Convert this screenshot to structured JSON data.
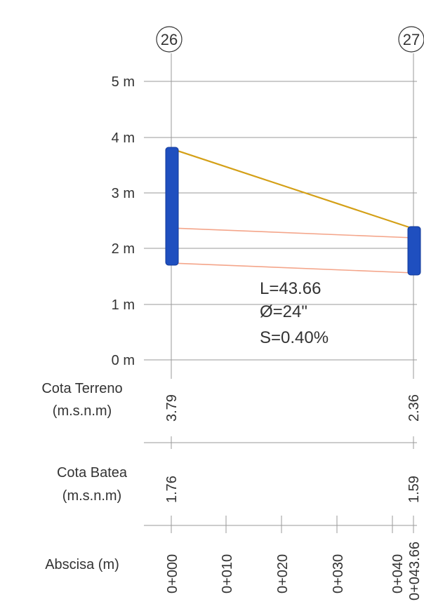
{
  "manholes": [
    {
      "id": "26",
      "terrain": "3.79",
      "invert": "1.76",
      "terrain_value": 3.79,
      "invert_value": 1.76
    },
    {
      "id": "27",
      "terrain": "2.36",
      "invert": "1.59",
      "terrain_value": 2.36,
      "invert_value": 1.59
    }
  ],
  "y_axis": {
    "ticks": [
      {
        "label": "0 m",
        "value": 0
      },
      {
        "label": "1 m",
        "value": 1
      },
      {
        "label": "2 m",
        "value": 2
      },
      {
        "label": "3 m",
        "value": 3
      },
      {
        "label": "4 m",
        "value": 4
      },
      {
        "label": "5 m",
        "value": 5
      }
    ]
  },
  "pipe": {
    "length": "L=43.66",
    "diameter": "Ø=24\"",
    "slope": "S=0.40%",
    "crown_start": 2.37,
    "crown_end": 2.2,
    "colors": {
      "terrain": "#d4a017",
      "pipe": "#f4a58a",
      "manhole": "#1f4fbf"
    }
  },
  "rows": {
    "terrain_label_1": "Cota  Terreno",
    "terrain_label_2": "(m.s.n.m)",
    "invert_label_1": "Cota  Batea",
    "invert_label_2": "(m.s.n.m)",
    "abscissa_label": "Abscisa (m)"
  },
  "abscissa": [
    "0+000",
    "0+010",
    "0+020",
    "0+030",
    "0+040",
    "0+043.66"
  ]
}
